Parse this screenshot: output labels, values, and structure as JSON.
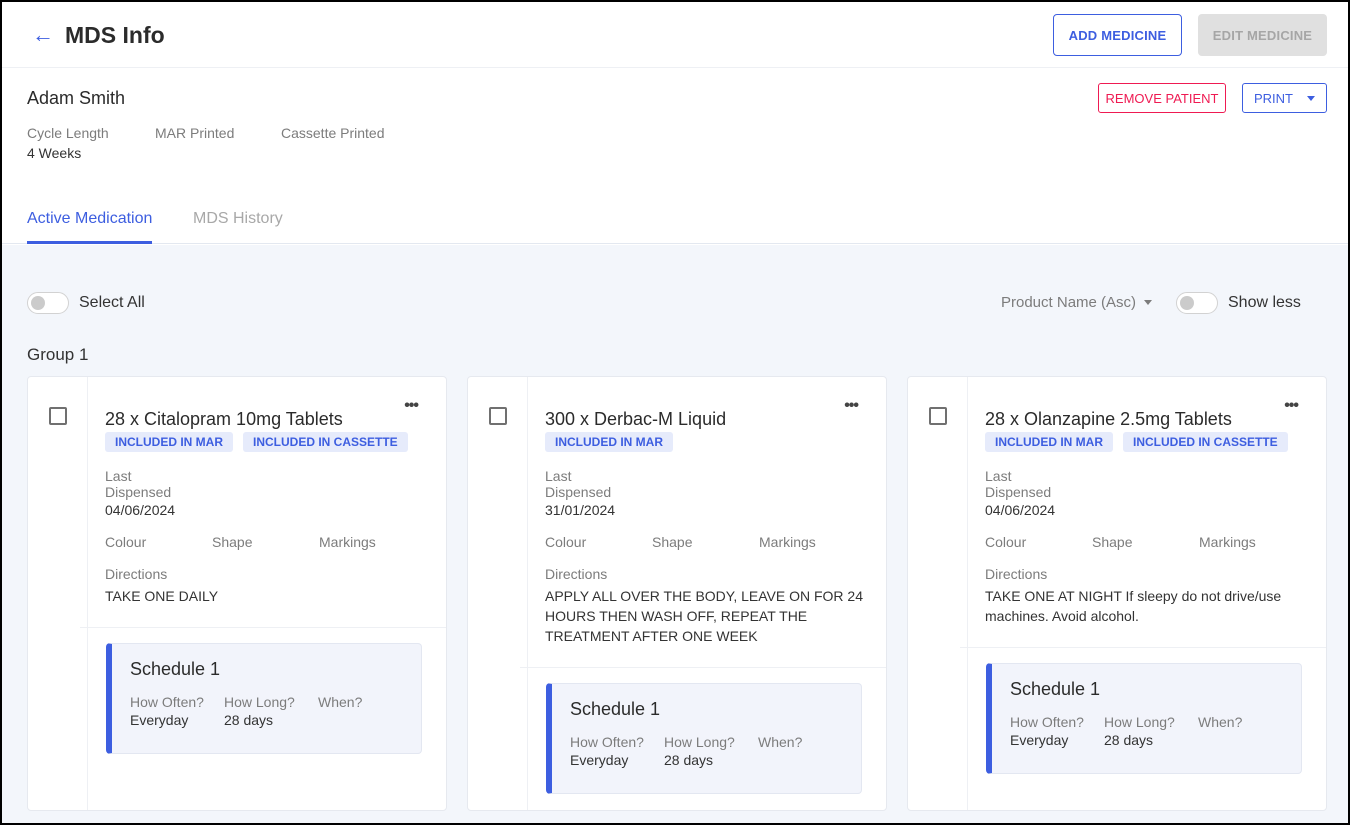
{
  "header": {
    "title": "MDS Info",
    "add_medicine": "ADD MEDICINE",
    "edit_medicine": "EDIT MEDICINE"
  },
  "patient": {
    "name": "Adam Smith",
    "cycle_length_label": "Cycle Length",
    "cycle_length": "4 Weeks",
    "mar_printed_label": "MAR Printed",
    "cassette_printed_label": "Cassette Printed",
    "remove": "REMOVE PATIENT",
    "print": "PRINT"
  },
  "tabs": [
    {
      "label": "Active Medication",
      "active": true
    },
    {
      "label": "MDS History",
      "active": false
    }
  ],
  "toolbar": {
    "select_all": "Select All",
    "sort": "Product Name (Asc)",
    "show_less": "Show less"
  },
  "group": {
    "title": "Group 1"
  },
  "labels": {
    "last_dispensed": "Last Dispensed",
    "colour": "Colour",
    "shape": "Shape",
    "markings": "Markings",
    "directions": "Directions",
    "how_often": "How Often?",
    "how_long": "How Long?",
    "when": "When?"
  },
  "cards": [
    {
      "name": "28 x Citalopram 10mg Tablets",
      "badges": [
        "INCLUDED IN MAR",
        "INCLUDED IN CASSETTE"
      ],
      "last_dispensed": "04/06/2024",
      "directions": "TAKE ONE DAILY",
      "schedule": {
        "title": "Schedule 1",
        "how_often": "Everyday",
        "how_long": "28 days"
      }
    },
    {
      "name": "300 x Derbac-M Liquid",
      "badges": [
        "INCLUDED IN MAR"
      ],
      "last_dispensed": "31/01/2024",
      "directions": "APPLY ALL OVER THE BODY, LEAVE ON FOR 24 HOURS THEN WASH OFF, REPEAT THE TREATMENT AFTER ONE WEEK",
      "schedule": {
        "title": "Schedule 1",
        "how_often": "Everyday",
        "how_long": "28 days"
      }
    },
    {
      "name": "28 x Olanzapine 2.5mg Tablets",
      "badges": [
        "INCLUDED IN MAR",
        "INCLUDED IN CASSETTE"
      ],
      "last_dispensed": "04/06/2024",
      "directions": "TAKE ONE AT NIGHT If sleepy do not drive/use machines. Avoid alcohol.",
      "schedule": {
        "title": "Schedule 1",
        "how_often": "Everyday",
        "how_long": "28 days"
      }
    }
  ],
  "colors": {
    "primary": "#3d5ee0",
    "danger": "#ef1a52",
    "background": "#f3f6fb"
  }
}
